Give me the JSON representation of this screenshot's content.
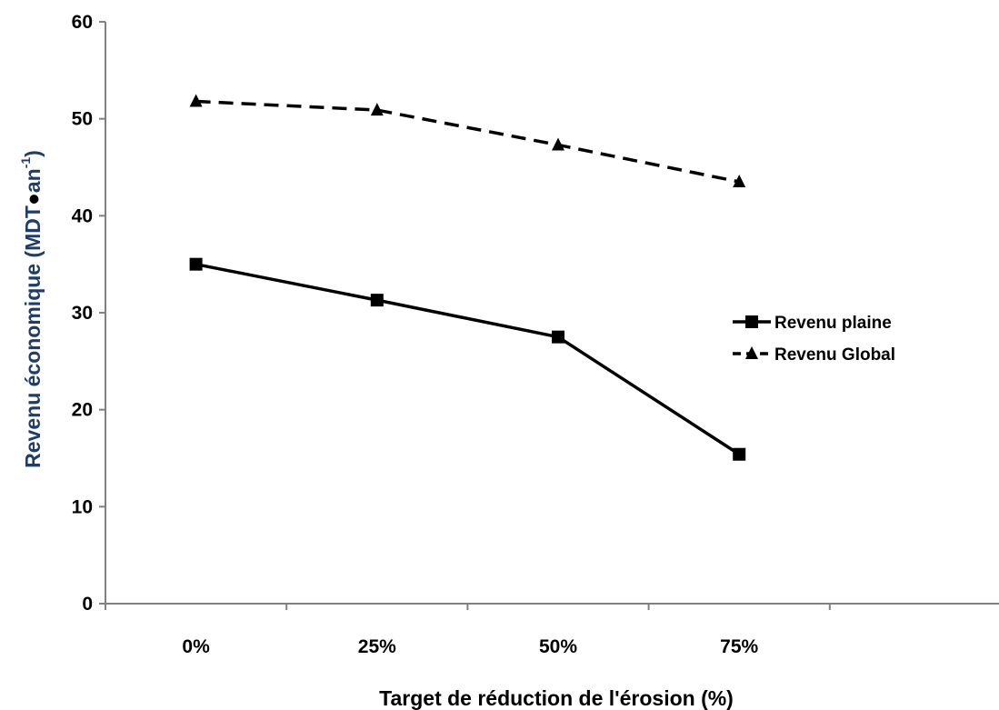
{
  "chart_data": {
    "type": "line",
    "title": "",
    "categories": [
      "0%",
      "25%",
      "50%",
      "75%"
    ],
    "xlabel": "Target de réduction de l'érosion (%)",
    "ylabel": {
      "main": "Revenu économique (MDT",
      "unit": "an",
      "exponent": "-1",
      "close": ")"
    },
    "ylim": [
      0,
      60
    ],
    "yticks": [
      "0",
      "10",
      "20",
      "30",
      "40",
      "50",
      "60"
    ],
    "grid": false,
    "legend_position": "right",
    "series": [
      {
        "name": "Revenu plaine",
        "values": [
          35.0,
          31.3,
          27.5,
          15.4
        ],
        "line_style": "solid",
        "marker": "square",
        "color": "#000000"
      },
      {
        "name": "Revenu Global",
        "values": [
          51.8,
          50.9,
          47.3,
          43.5
        ],
        "line_style": "dashed",
        "marker": "triangle",
        "color": "#000000"
      }
    ],
    "colors": {
      "ylabel_text": "#1f3d6b",
      "ylabel_bullet": "#000000",
      "xlabel_text": "#000000",
      "axis": "#808080"
    }
  }
}
